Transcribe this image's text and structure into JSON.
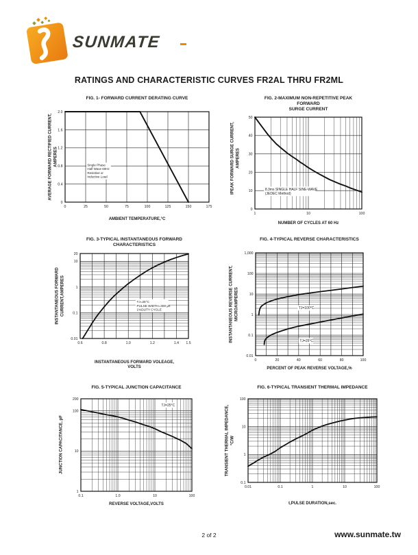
{
  "page": {
    "main_title": "RATINGS AND CHARACTERISTIC CURVES FR2AL THRU FR2ML",
    "page_number": "2 of 2",
    "website": "www.sunmate.tw"
  },
  "logo": {
    "brand": "SUNMATE"
  },
  "colors": {
    "brand_orange": "#EF8A00",
    "brand_orange_light": "#F7A91E",
    "brand_olive": "#8F9D35",
    "ink": "#1A1A1A"
  },
  "chart_data": [
    {
      "id": "fig1",
      "type": "line",
      "title": "FIG. 1- FORWARD CURRENT DERATING CURVE",
      "xlabel": "AMBIENT TEMPERATURE,°C",
      "ylabel": "AVERAGE FORWARD RECTIFIED CURRENT,\nAMPERES",
      "x": {
        "scale": "linear",
        "min": 0,
        "max": 175,
        "grid": 25,
        "ticks": [
          {
            "v": 0,
            "t": "0"
          },
          {
            "v": 25,
            "t": "25"
          },
          {
            "v": 50,
            "t": "50"
          },
          {
            "v": 75,
            "t": "75"
          },
          {
            "v": 100,
            "t": "100"
          },
          {
            "v": 125,
            "t": "125"
          },
          {
            "v": 150,
            "t": "150"
          },
          {
            "v": 175,
            "t": "175"
          }
        ]
      },
      "y": {
        "scale": "linear",
        "min": 0,
        "max": 2,
        "grid": 0.4,
        "ticks": [
          {
            "v": 0,
            "t": "0"
          },
          {
            "v": 0.4,
            "t": "0.4"
          },
          {
            "v": 0.8,
            "t": "0.8"
          },
          {
            "v": 1.2,
            "t": "1.2"
          },
          {
            "v": 1.6,
            "t": "1.6"
          },
          {
            "v": 2,
            "t": "2.0"
          }
        ]
      },
      "series": [
        {
          "name": "derating-curve",
          "width": 1.9,
          "points": [
            [
              0,
              2
            ],
            [
              91,
              2
            ],
            [
              150,
              0
            ]
          ]
        }
      ],
      "annotations": [
        {
          "x": 27,
          "y": 0.82,
          "size": 4.5,
          "anchor": "start",
          "bg": true,
          "lines": [
            "Single Phase",
            "Half Wave 60Hz",
            "Resistive or",
            "Inductive Load"
          ]
        }
      ]
    },
    {
      "id": "fig2",
      "type": "line",
      "title": "FIG. 2-MAXIMUM NON-REPETITIVE PEAK FORWARD\nSURGE CURRENT",
      "xlabel": "NUMBER OF CYCLES AT 60 Hz",
      "ylabel": "IPEAK  FORWARD SURGE CURRENT,\nAMPERES",
      "x": {
        "scale": "log",
        "min": 1,
        "max": 100,
        "ticks": [
          {
            "v": 1,
            "t": "1"
          },
          {
            "v": 10,
            "t": "10"
          },
          {
            "v": 100,
            "t": "100"
          }
        ]
      },
      "y": {
        "scale": "linear",
        "min": 0,
        "max": 50,
        "grid": 10,
        "ticks": [
          {
            "v": 0,
            "t": "0"
          },
          {
            "v": 10,
            "t": "10"
          },
          {
            "v": 20,
            "t": "20"
          },
          {
            "v": 30,
            "t": "30"
          },
          {
            "v": 40,
            "t": "40"
          },
          {
            "v": 50,
            "t": "50"
          }
        ]
      },
      "series": [
        {
          "name": "surge-current-curve",
          "width": 1.9,
          "points": [
            [
              1,
              50
            ],
            [
              1.3,
              45.5
            ],
            [
              1.7,
              41
            ],
            [
              2,
              38.5
            ],
            [
              2.5,
              35.5
            ],
            [
              3,
              33.5
            ],
            [
              4,
              30.5
            ],
            [
              5,
              28.5
            ],
            [
              6,
              27
            ],
            [
              7,
              25.5
            ],
            [
              8,
              24.5
            ],
            [
              10,
              22.5
            ],
            [
              13,
              20.5
            ],
            [
              16,
              19
            ],
            [
              20,
              17.5
            ],
            [
              25,
              16
            ],
            [
              30,
              15
            ],
            [
              40,
              13.5
            ],
            [
              50,
              12.5
            ],
            [
              60,
              11.5
            ],
            [
              80,
              10.2
            ],
            [
              100,
              9.2
            ]
          ]
        }
      ],
      "annotations": [
        {
          "x": 1.55,
          "y": 10.8,
          "size": 5,
          "anchor": "start",
          "bg": true,
          "lines": [
            "8.3ms SINGLE HALF SINE-WAVE",
            "(JEDEC Method)"
          ]
        }
      ]
    },
    {
      "id": "fig3",
      "type": "line",
      "title": "FIG. 3-TYPICAL INSTANTANEOUS FORWARD\nCHARACTERISTICS",
      "xlabel": "INSTANTANEOUS FORWARD VOLEAGE,\nVOLTS",
      "ylabel": "INSTANTANEOUS FORWARD\nCURRENT,AMPERES",
      "x": {
        "scale": "linear",
        "min": 0.6,
        "max": 1.5,
        "grid": 0.1,
        "ticks": [
          {
            "v": 0.6,
            "t": "0.6"
          },
          {
            "v": 0.8,
            "t": "0.8"
          },
          {
            "v": 1,
            "t": "1.0"
          },
          {
            "v": 1.2,
            "t": "1.2"
          },
          {
            "v": 1.4,
            "t": "1.4"
          },
          {
            "v": 1.5,
            "t": "1.5"
          }
        ]
      },
      "y": {
        "scale": "log",
        "min": 0.01,
        "max": 20,
        "ticks": [
          {
            "v": 0.01,
            "t": "0.01"
          },
          {
            "v": 0.1,
            "t": "0.1"
          },
          {
            "v": 1,
            "t": "1"
          },
          {
            "v": 10,
            "t": "10"
          },
          {
            "v": 20,
            "t": "20"
          }
        ]
      },
      "series": [
        {
          "name": "forward-characteristic-curve",
          "width": 1.8,
          "points": [
            [
              0.62,
              0.01
            ],
            [
              0.64,
              0.014
            ],
            [
              0.66,
              0.02
            ],
            [
              0.68,
              0.028
            ],
            [
              0.7,
              0.04
            ],
            [
              0.73,
              0.065
            ],
            [
              0.76,
              0.1
            ],
            [
              0.8,
              0.17
            ],
            [
              0.84,
              0.28
            ],
            [
              0.88,
              0.44
            ],
            [
              0.92,
              0.65
            ],
            [
              0.96,
              0.95
            ],
            [
              1,
              1.35
            ],
            [
              1.05,
              2
            ],
            [
              1.1,
              2.9
            ],
            [
              1.15,
              4.1
            ],
            [
              1.2,
              5.6
            ],
            [
              1.25,
              7.3
            ],
            [
              1.3,
              9.3
            ],
            [
              1.35,
              11.6
            ],
            [
              1.4,
              14
            ],
            [
              1.45,
              16.6
            ],
            [
              1.5,
              19.3
            ]
          ]
        }
      ],
      "annotations": [
        {
          "x": 1.07,
          "y": 0.27,
          "size": 4.7,
          "anchor": "start",
          "bg": true,
          "lines": [
            "TJ=25°C",
            "PULSE WIDTH=300 μs",
            "1%DUTY CYCLE"
          ]
        }
      ]
    },
    {
      "id": "fig4",
      "type": "line",
      "title": "FIG. 4-TYPICAL REVERSE CHARACTERISTICS",
      "xlabel": "PERCENT OF PEAK REVERSE VOLTAGE,%",
      "ylabel": "INSTANTANEOUS REVERSE CURRENT,\nMICROAMPERES",
      "x": {
        "scale": "linear",
        "min": 0,
        "max": 100,
        "grid": 10,
        "ticks": [
          {
            "v": 0,
            "t": "0"
          },
          {
            "v": 20,
            "t": "20"
          },
          {
            "v": 40,
            "t": "40"
          },
          {
            "v": 60,
            "t": "60"
          },
          {
            "v": 80,
            "t": "80"
          },
          {
            "v": 100,
            "t": "100"
          }
        ]
      },
      "y": {
        "scale": "log",
        "min": 0.01,
        "max": 1000,
        "ticks": [
          {
            "v": 0.01,
            "t": "0.01"
          },
          {
            "v": 0.1,
            "t": "0.1"
          },
          {
            "v": 1,
            "t": "1"
          },
          {
            "v": 10,
            "t": "10"
          },
          {
            "v": 100,
            "t": "100"
          },
          {
            "v": 1000,
            "t": "1,000"
          }
        ]
      },
      "series": [
        {
          "name": "TJ=100C",
          "width": 1.8,
          "points": [
            [
              3,
              0.95
            ],
            [
              3.2,
              1.2
            ],
            [
              3.5,
              1.5
            ],
            [
              4,
              1.9
            ],
            [
              5,
              2.4
            ],
            [
              6,
              2.7
            ],
            [
              8,
              3.2
            ],
            [
              10,
              3.7
            ],
            [
              15,
              4.7
            ],
            [
              20,
              5.7
            ],
            [
              25,
              6.5
            ],
            [
              30,
              7.4
            ],
            [
              40,
              9.3
            ],
            [
              50,
              11
            ],
            [
              60,
              13
            ],
            [
              70,
              15
            ],
            [
              80,
              17.5
            ],
            [
              90,
              20.5
            ],
            [
              100,
              24
            ]
          ]
        },
        {
          "name": "TJ=25C",
          "width": 1.8,
          "points": [
            [
              8,
              0.035
            ],
            [
              8.3,
              0.05
            ],
            [
              9,
              0.06
            ],
            [
              10,
              0.07
            ],
            [
              12,
              0.085
            ],
            [
              15,
              0.105
            ],
            [
              20,
              0.135
            ],
            [
              25,
              0.165
            ],
            [
              30,
              0.2
            ],
            [
              40,
              0.27
            ],
            [
              50,
              0.34
            ],
            [
              60,
              0.43
            ],
            [
              70,
              0.54
            ],
            [
              80,
              0.68
            ],
            [
              90,
              0.85
            ],
            [
              100,
              1.05
            ]
          ]
        }
      ],
      "annotations": [
        {
          "x": 40,
          "y": 2.1,
          "size": 5,
          "anchor": "start",
          "bg": true,
          "lines": [
            "TJ=100°C"
          ]
        },
        {
          "x": 41,
          "y": 0.053,
          "size": 5,
          "anchor": "start",
          "bg": true,
          "lines": [
            "TJ=25°C"
          ]
        }
      ]
    },
    {
      "id": "fig5",
      "type": "line",
      "title": "FIG. 5-TYPICAL JUNCTION CAPACITANCE",
      "xlabel": "REVERSE VOLTAGE,VOLTS",
      "ylabel": "JUNCTION CAPACITANCE, pF",
      "x": {
        "scale": "log",
        "min": 0.1,
        "max": 100,
        "ticks": [
          {
            "v": 0.1,
            "t": "0.1"
          },
          {
            "v": 1,
            "t": "1.0"
          },
          {
            "v": 10,
            "t": "10"
          },
          {
            "v": 100,
            "t": "100"
          }
        ]
      },
      "y": {
        "scale": "log",
        "min": 1,
        "max": 200,
        "ticks": [
          {
            "v": 1,
            "t": "1"
          },
          {
            "v": 10,
            "t": "10"
          },
          {
            "v": 100,
            "t": "100"
          },
          {
            "v": 200,
            "t": "200"
          }
        ]
      },
      "series": [
        {
          "name": "junction-capacitance-curve",
          "width": 1.8,
          "points": [
            [
              0.1,
              108
            ],
            [
              0.15,
              100
            ],
            [
              0.2,
              95
            ],
            [
              0.3,
              88
            ],
            [
              0.5,
              80
            ],
            [
              0.7,
              76
            ],
            [
              1,
              71
            ],
            [
              1.5,
              64
            ],
            [
              2,
              59
            ],
            [
              3,
              53
            ],
            [
              5,
              45
            ],
            [
              7,
              41
            ],
            [
              10,
              36
            ],
            [
              15,
              30
            ],
            [
              20,
              27
            ],
            [
              30,
              23
            ],
            [
              50,
              18.5
            ],
            [
              70,
              15.5
            ],
            [
              100,
              11.5
            ]
          ]
        }
      ],
      "annotations": [
        {
          "x": 15,
          "y": 140,
          "size": 5,
          "anchor": "start",
          "bg": true,
          "lines": [
            "TJ=25°C"
          ]
        }
      ]
    },
    {
      "id": "fig6",
      "type": "line",
      "title": "FIG. 6-TYPICAL TRANSIENT THERMAL IMPEDANCE",
      "xlabel": "t,PULSE DURATION,sec.",
      "ylabel": "TRANSIENT THERMAL  IMPEDANCE,\n°C/W",
      "x": {
        "scale": "log",
        "min": 0.01,
        "max": 100,
        "ticks": [
          {
            "v": 0.01,
            "t": "0.01"
          },
          {
            "v": 0.1,
            "t": "0.1"
          },
          {
            "v": 1,
            "t": "1"
          },
          {
            "v": 10,
            "t": "10"
          },
          {
            "v": 100,
            "t": "100"
          }
        ]
      },
      "y": {
        "scale": "log",
        "min": 0.1,
        "max": 100,
        "ticks": [
          {
            "v": 0.1,
            "t": "0.1"
          },
          {
            "v": 1,
            "t": "1"
          },
          {
            "v": 10,
            "t": "10"
          },
          {
            "v": 100,
            "t": "100"
          }
        ]
      },
      "series": [
        {
          "name": "thermal-impedance-curve",
          "width": 1.8,
          "points": [
            [
              0.01,
              0.38
            ],
            [
              0.015,
              0.5
            ],
            [
              0.02,
              0.62
            ],
            [
              0.03,
              0.8
            ],
            [
              0.05,
              1.05
            ],
            [
              0.07,
              1.3
            ],
            [
              0.1,
              1.75
            ],
            [
              0.15,
              2.3
            ],
            [
              0.2,
              2.8
            ],
            [
              0.3,
              3.6
            ],
            [
              0.5,
              4.8
            ],
            [
              0.7,
              5.9
            ],
            [
              1,
              7.5
            ],
            [
              1.5,
              9.2
            ],
            [
              2,
              10.5
            ],
            [
              3,
              12.2
            ],
            [
              5,
              14.3
            ],
            [
              7,
              15.8
            ],
            [
              10,
              17.2
            ],
            [
              15,
              18.8
            ],
            [
              20,
              19.8
            ],
            [
              30,
              20.8
            ],
            [
              50,
              21.6
            ],
            [
              70,
              22.1
            ],
            [
              100,
              22.5
            ]
          ]
        }
      ],
      "annotations": []
    }
  ]
}
